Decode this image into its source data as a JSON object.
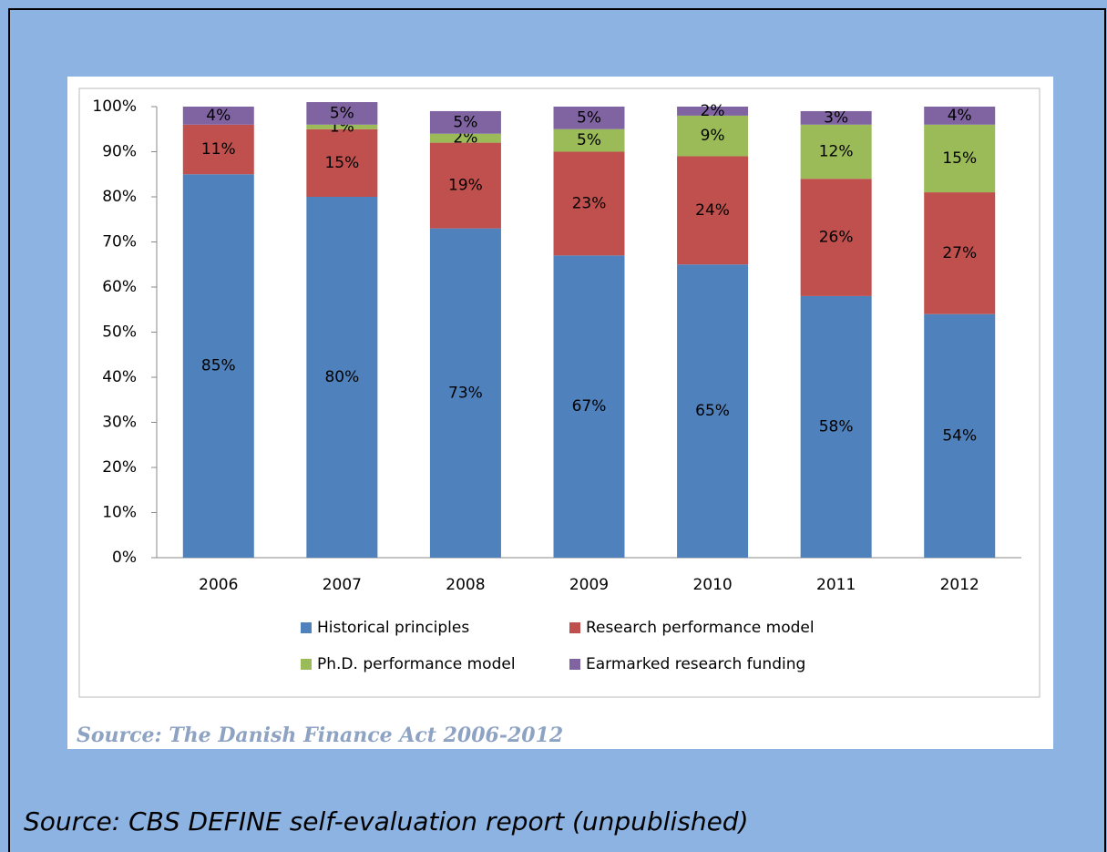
{
  "chart_data": {
    "type": "stacked_bar",
    "categories": [
      "2006",
      "2007",
      "2008",
      "2009",
      "2010",
      "2011",
      "2012"
    ],
    "series": [
      {
        "name": "Historical principles",
        "color": "#4f81bd",
        "values": [
          85,
          80,
          73,
          67,
          65,
          58,
          54
        ],
        "value_labels": [
          "85%",
          "80%",
          "73%",
          "67%",
          "65%",
          "58%",
          "54%"
        ]
      },
      {
        "name": "Research performance model",
        "color": "#c0504d",
        "values": [
          11,
          15,
          19,
          23,
          24,
          26,
          27
        ],
        "value_labels": [
          "11%",
          "15%",
          "19%",
          "23%",
          "24%",
          "26%",
          "27%"
        ]
      },
      {
        "name": "Ph.D. performance model",
        "color": "#9bbb59",
        "values": [
          0,
          1,
          2,
          5,
          9,
          12,
          15
        ],
        "value_labels": [
          null,
          "1%",
          "2%",
          "5%",
          "9%",
          "12%",
          "15%"
        ]
      },
      {
        "name": "Earmarked research funding",
        "color": "#8064a2",
        "values": [
          4,
          5,
          5,
          5,
          2,
          3,
          4
        ],
        "value_labels": [
          "4%",
          "5%",
          "5%",
          "5%",
          "2%",
          "3%",
          "4%"
        ]
      }
    ],
    "ylim": [
      0,
      100
    ],
    "yticks": [
      {
        "value": 0,
        "label": "0%"
      },
      {
        "value": 10,
        "label": "10%"
      },
      {
        "value": 20,
        "label": "20%"
      },
      {
        "value": 30,
        "label": "30%"
      },
      {
        "value": 40,
        "label": "40%"
      },
      {
        "value": 50,
        "label": "50%"
      },
      {
        "value": 60,
        "label": "60%"
      },
      {
        "value": 70,
        "label": "70%"
      },
      {
        "value": 80,
        "label": "80%"
      },
      {
        "value": 90,
        "label": "90%"
      },
      {
        "value": 100,
        "label": "100%"
      }
    ],
    "source": "Source: The Danish Finance Act 2006-2012"
  },
  "footer": "Source: CBS DEFINE self-evaluation report (unpublished)"
}
